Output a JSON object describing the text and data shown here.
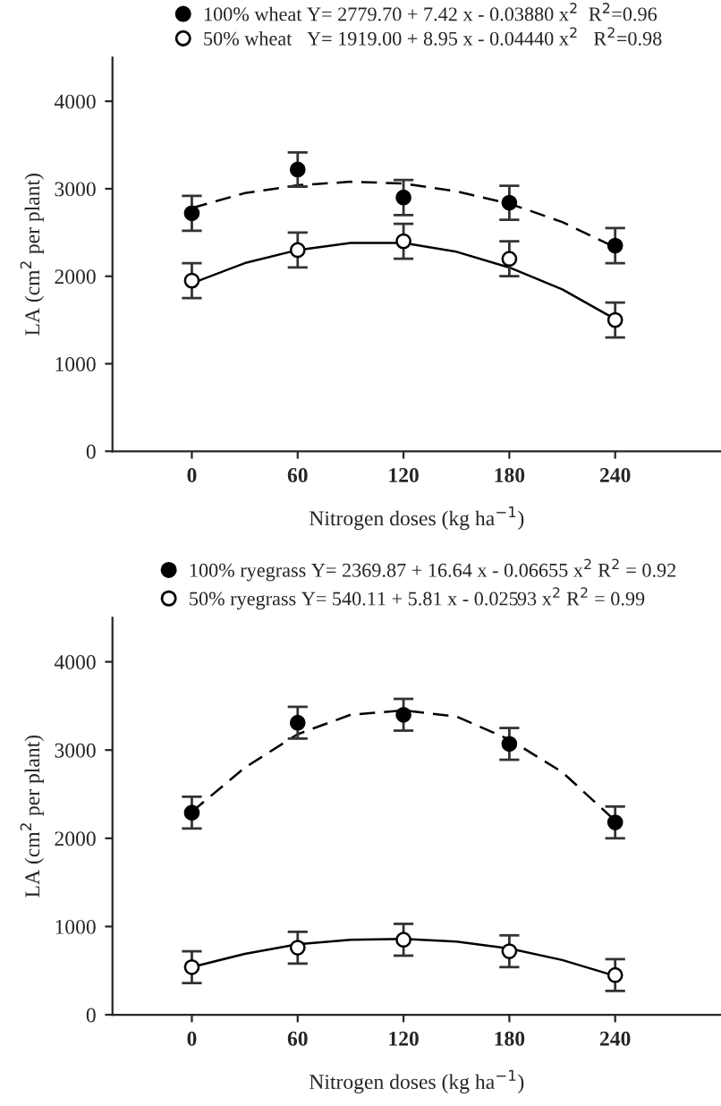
{
  "chart_data": [
    {
      "type": "scatter",
      "xlabel": "Nitrogen doses (kg ha$^{−1}$)",
      "ylabel": "LA (cm$^{2}$ per plant)",
      "x": [
        0,
        60,
        120,
        180,
        240
      ],
      "xlim": [
        -45,
        300
      ],
      "xticks": [
        0,
        60,
        120,
        180,
        240
      ],
      "ylim": [
        0,
        4500
      ],
      "yticks": [
        0,
        1000,
        2000,
        3000,
        4000
      ],
      "legend": "top",
      "grid": false,
      "series": [
        {
          "name": "100% wheat Y= 2779.70 + 7.42 x - 0.03880 x$^{2}$  R$^{2}$=0.96",
          "type": "scatter",
          "marker": "circle",
          "color": "#000000",
          "values": [
            2720,
            3220,
            2900,
            2840,
            2350
          ],
          "errors": [
            200,
            195,
            200,
            195,
            200
          ]
        },
        {
          "name": "50% wheat   Y= 1919.00 + 8.95 x - 0.04440 x$^{2}$   R$^{2}$=0.98",
          "type": "scatter",
          "marker": "circle",
          "color": "#ffffff",
          "values": [
            1950,
            2300,
            2400,
            2200,
            1500
          ],
          "errors": [
            200,
            200,
            200,
            200,
            200
          ]
        },
        {
          "type": "line",
          "marker": "none",
          "line_style": "dashed",
          "color": "#000000",
          "x": [
            0,
            30,
            60,
            90,
            120,
            150,
            180,
            210,
            240
          ],
          "values": [
            2780,
            2950,
            3040,
            3080,
            3060,
            2970,
            2830,
            2620,
            2330
          ]
        },
        {
          "type": "line",
          "marker": "none",
          "line_style": "solid",
          "color": "#000000",
          "x": [
            0,
            30,
            60,
            90,
            120,
            150,
            180,
            210,
            240
          ],
          "values": [
            1920,
            2150,
            2300,
            2380,
            2380,
            2280,
            2100,
            1850,
            1510
          ]
        }
      ]
    },
    {
      "type": "scatter",
      "xlabel": "Nitrogen doses (kg ha$^{−1}$)",
      "ylabel": "LA (cm$^{2}$ per plant)",
      "x": [
        0,
        60,
        120,
        180,
        240
      ],
      "xlim": [
        -45,
        300
      ],
      "xticks": [
        0,
        60,
        120,
        180,
        240
      ],
      "ylim": [
        0,
        4500
      ],
      "yticks": [
        0,
        1000,
        2000,
        3000,
        4000
      ],
      "legend": "top",
      "grid": false,
      "series": [
        {
          "name": "100% ryegrass Y= 2369.87 + 16.64 x - 0.06655 x$^{2}$ R$^{2}$ = 0.92",
          "type": "scatter",
          "marker": "circle",
          "color": "#000000",
          "values": [
            2290,
            3310,
            3400,
            3070,
            2180
          ],
          "errors": [
            180,
            180,
            180,
            180,
            180
          ]
        },
        {
          "name": "50% ryegrass Y= 540.11 + 5.81 x - 0.02593 x$^{2}$ R$^{2}$ = 0.99",
          "type": "scatter",
          "marker": "circle",
          "color": "#ffffff",
          "values": [
            540,
            760,
            850,
            720,
            450
          ],
          "errors": [
            180,
            180,
            180,
            180,
            180
          ]
        },
        {
          "type": "line",
          "marker": "none",
          "line_style": "dashed",
          "color": "#000000",
          "x": [
            0,
            30,
            60,
            90,
            120,
            150,
            180,
            210,
            240
          ],
          "values": [
            2300,
            2800,
            3180,
            3400,
            3450,
            3380,
            3120,
            2750,
            2200
          ]
        },
        {
          "type": "line",
          "marker": "none",
          "line_style": "solid",
          "color": "#000000",
          "x": [
            0,
            30,
            60,
            90,
            120,
            150,
            180,
            210,
            240
          ],
          "values": [
            540,
            690,
            800,
            850,
            860,
            830,
            750,
            620,
            440
          ]
        }
      ]
    }
  ]
}
